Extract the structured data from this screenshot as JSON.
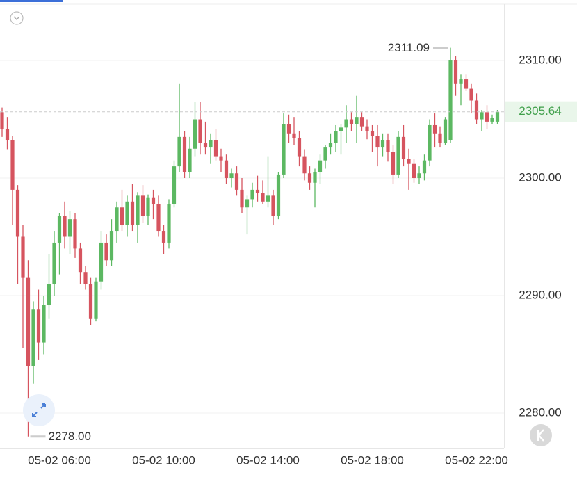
{
  "chart_data": {
    "type": "candlestick",
    "categories": [
      null,
      null,
      null,
      null,
      null,
      null,
      null,
      null,
      null,
      null,
      null,
      "05-02 06:00",
      null,
      null,
      null,
      null,
      null,
      null,
      null,
      null,
      null,
      null,
      null,
      null,
      null,
      null,
      null,
      null,
      null,
      null,
      null,
      "05-02 10:00",
      null,
      null,
      null,
      null,
      null,
      null,
      null,
      null,
      null,
      null,
      null,
      null,
      null,
      null,
      null,
      null,
      null,
      null,
      null,
      "05-02 14:00",
      null,
      null,
      null,
      null,
      null,
      null,
      null,
      null,
      null,
      null,
      null,
      null,
      null,
      null,
      null,
      null,
      null,
      null,
      null,
      "05-02 18:00",
      null,
      null,
      null,
      null,
      null,
      null,
      null,
      null,
      null,
      null,
      null,
      null,
      null,
      null,
      null,
      null,
      null,
      null,
      null,
      "05-02 22:00",
      null,
      null,
      null,
      null
    ],
    "open": [
      2305.6,
      2304.2,
      2303.2,
      2299.0,
      2295.0,
      2291.5,
      2284.0,
      2288.8,
      2286.0,
      2289.2,
      2291.0,
      2294.5,
      2296.8,
      2295.0,
      2296.5,
      2294.0,
      2292.0,
      2291.0,
      2288.0,
      2291.2,
      2294.5,
      2293.0,
      2295.5,
      2297.5,
      2296.0,
      2298.0,
      2296.0,
      2298.5,
      2296.8,
      2298.3,
      2297.8,
      2295.5,
      2294.5,
      2297.8,
      2301.0,
      2303.5,
      2300.5,
      2302.5,
      2305.0,
      2303.0,
      2302.6,
      2303.2,
      2301.8,
      2301.5,
      2300.0,
      2300.4,
      2299.0,
      2297.5,
      2298.2,
      2299.0,
      2298.7,
      2298.0,
      2298.5,
      2296.8,
      2300.3,
      2304.6,
      2303.8,
      2303.4,
      2301.8,
      2300.4,
      2299.6,
      2300.5,
      2301.5,
      2302.6,
      2303.0,
      2304.0,
      2304.3,
      2305.0,
      2304.6,
      2305.2,
      2304.4,
      2304.0,
      2303.6,
      2302.6,
      2303.2,
      2302.2,
      2300.3,
      2303.5,
      2301.6,
      2301.2,
      2300.0,
      2300.4,
      2301.5,
      2304.5,
      2303.8,
      2303.0,
      2303.2,
      2310.0,
      2308.0,
      2308.4,
      2307.6,
      2306.6,
      2305.0,
      2305.6,
      2304.8,
      2304.8
    ],
    "high": [
      2306.0,
      2305.2,
      2303.6,
      2299.4,
      2296.0,
      2293.0,
      2289.5,
      2290.5,
      2290.0,
      2293.5,
      2295.5,
      2297.0,
      2298.0,
      2297.2,
      2297.0,
      2294.5,
      2292.5,
      2291.5,
      2291.5,
      2295.5,
      2295.2,
      2296.5,
      2298.0,
      2299.0,
      2298.5,
      2299.5,
      2298.8,
      2299.4,
      2298.6,
      2299.0,
      2298.5,
      2296.0,
      2298.2,
      2301.5,
      2308.0,
      2304.0,
      2303.5,
      2306.5,
      2306.5,
      2304.8,
      2303.8,
      2304.2,
      2302.5,
      2302.0,
      2300.8,
      2301.0,
      2300.0,
      2298.5,
      2299.6,
      2300.2,
      2299.8,
      2301.8,
      2299.0,
      2300.5,
      2305.5,
      2305.4,
      2305.2,
      2304.0,
      2302.4,
      2301.0,
      2300.8,
      2302.0,
      2302.8,
      2303.8,
      2304.5,
      2304.6,
      2306.2,
      2305.6,
      2307.0,
      2305.6,
      2305.0,
      2304.5,
      2304.5,
      2303.8,
      2303.8,
      2302.8,
      2304.0,
      2304.5,
      2302.5,
      2301.6,
      2301.0,
      2302.0,
      2305.0,
      2305.5,
      2304.4,
      2305.2,
      2311.09,
      2310.4,
      2308.8,
      2308.8,
      2308.0,
      2307.2,
      2305.8,
      2306.2,
      2305.4,
      2305.8
    ],
    "low": [
      2303.5,
      2302.4,
      2296.0,
      2291.0,
      2285.5,
      2278.0,
      2282.5,
      2284.5,
      2285.0,
      2288.0,
      2290.0,
      2291.8,
      2294.0,
      2293.5,
      2293.2,
      2291.0,
      2290.5,
      2287.5,
      2287.8,
      2290.5,
      2292.5,
      2292.5,
      2294.5,
      2295.5,
      2295.0,
      2295.5,
      2294.5,
      2296.2,
      2296.0,
      2296.5,
      2295.0,
      2293.5,
      2294.0,
      2297.5,
      2300.5,
      2300.0,
      2300.0,
      2301.8,
      2302.0,
      2302.0,
      2301.2,
      2301.5,
      2300.5,
      2299.5,
      2299.2,
      2298.5,
      2297.0,
      2295.2,
      2297.5,
      2298.0,
      2297.8,
      2297.5,
      2296.0,
      2296.5,
      2300.0,
      2303.0,
      2302.8,
      2301.0,
      2299.8,
      2299.0,
      2297.5,
      2299.5,
      2300.8,
      2302.0,
      2302.2,
      2302.0,
      2303.0,
      2304.0,
      2303.0,
      2304.0,
      2303.3,
      2302.2,
      2301.0,
      2301.8,
      2301.4,
      2299.5,
      2300.0,
      2301.0,
      2299.0,
      2299.6,
      2299.5,
      2299.8,
      2301.0,
      2302.6,
      2302.6,
      2302.8,
      2303.0,
      2307.0,
      2306.2,
      2307.4,
      2305.5,
      2304.6,
      2304.0,
      2304.2,
      2304.6,
      2304.6
    ],
    "close": [
      2304.2,
      2303.2,
      2299.0,
      2295.0,
      2291.5,
      2284.0,
      2288.8,
      2286.0,
      2289.2,
      2291.0,
      2294.5,
      2296.8,
      2295.0,
      2296.5,
      2294.0,
      2292.0,
      2291.0,
      2288.0,
      2291.2,
      2294.5,
      2293.0,
      2295.5,
      2297.5,
      2296.0,
      2298.0,
      2296.0,
      2298.5,
      2296.8,
      2298.3,
      2297.8,
      2295.5,
      2294.5,
      2297.8,
      2301.0,
      2303.5,
      2300.5,
      2302.5,
      2305.0,
      2303.0,
      2302.6,
      2303.2,
      2301.8,
      2301.5,
      2300.0,
      2300.4,
      2299.0,
      2297.5,
      2298.2,
      2299.0,
      2298.7,
      2298.0,
      2298.5,
      2296.8,
      2300.3,
      2304.6,
      2303.8,
      2303.4,
      2301.8,
      2300.4,
      2299.6,
      2300.5,
      2301.5,
      2302.6,
      2303.0,
      2304.0,
      2304.3,
      2305.0,
      2304.6,
      2305.2,
      2304.4,
      2304.0,
      2303.6,
      2302.6,
      2303.2,
      2302.2,
      2300.3,
      2303.5,
      2301.6,
      2301.2,
      2300.0,
      2300.4,
      2301.5,
      2304.5,
      2303.8,
      2303.0,
      2305.0,
      2310.0,
      2308.0,
      2308.4,
      2307.6,
      2306.6,
      2305.0,
      2305.6,
      2304.8,
      2305.1,
      2305.64
    ],
    "up_color": "#5cb862",
    "down_color": "#d6545f",
    "ylim": [
      2276.98,
      2315.15
    ],
    "yticks": [
      {
        "value": 2280,
        "label": "2280.00"
      },
      {
        "value": 2290,
        "label": "2290.00"
      },
      {
        "value": 2300,
        "label": "2300.00"
      },
      {
        "value": 2310,
        "label": "2310.00"
      }
    ],
    "grid": true,
    "last_price": {
      "value": 2305.64,
      "label": "2305.64"
    },
    "high_label": "2311.09",
    "low_label": "2278.00"
  }
}
